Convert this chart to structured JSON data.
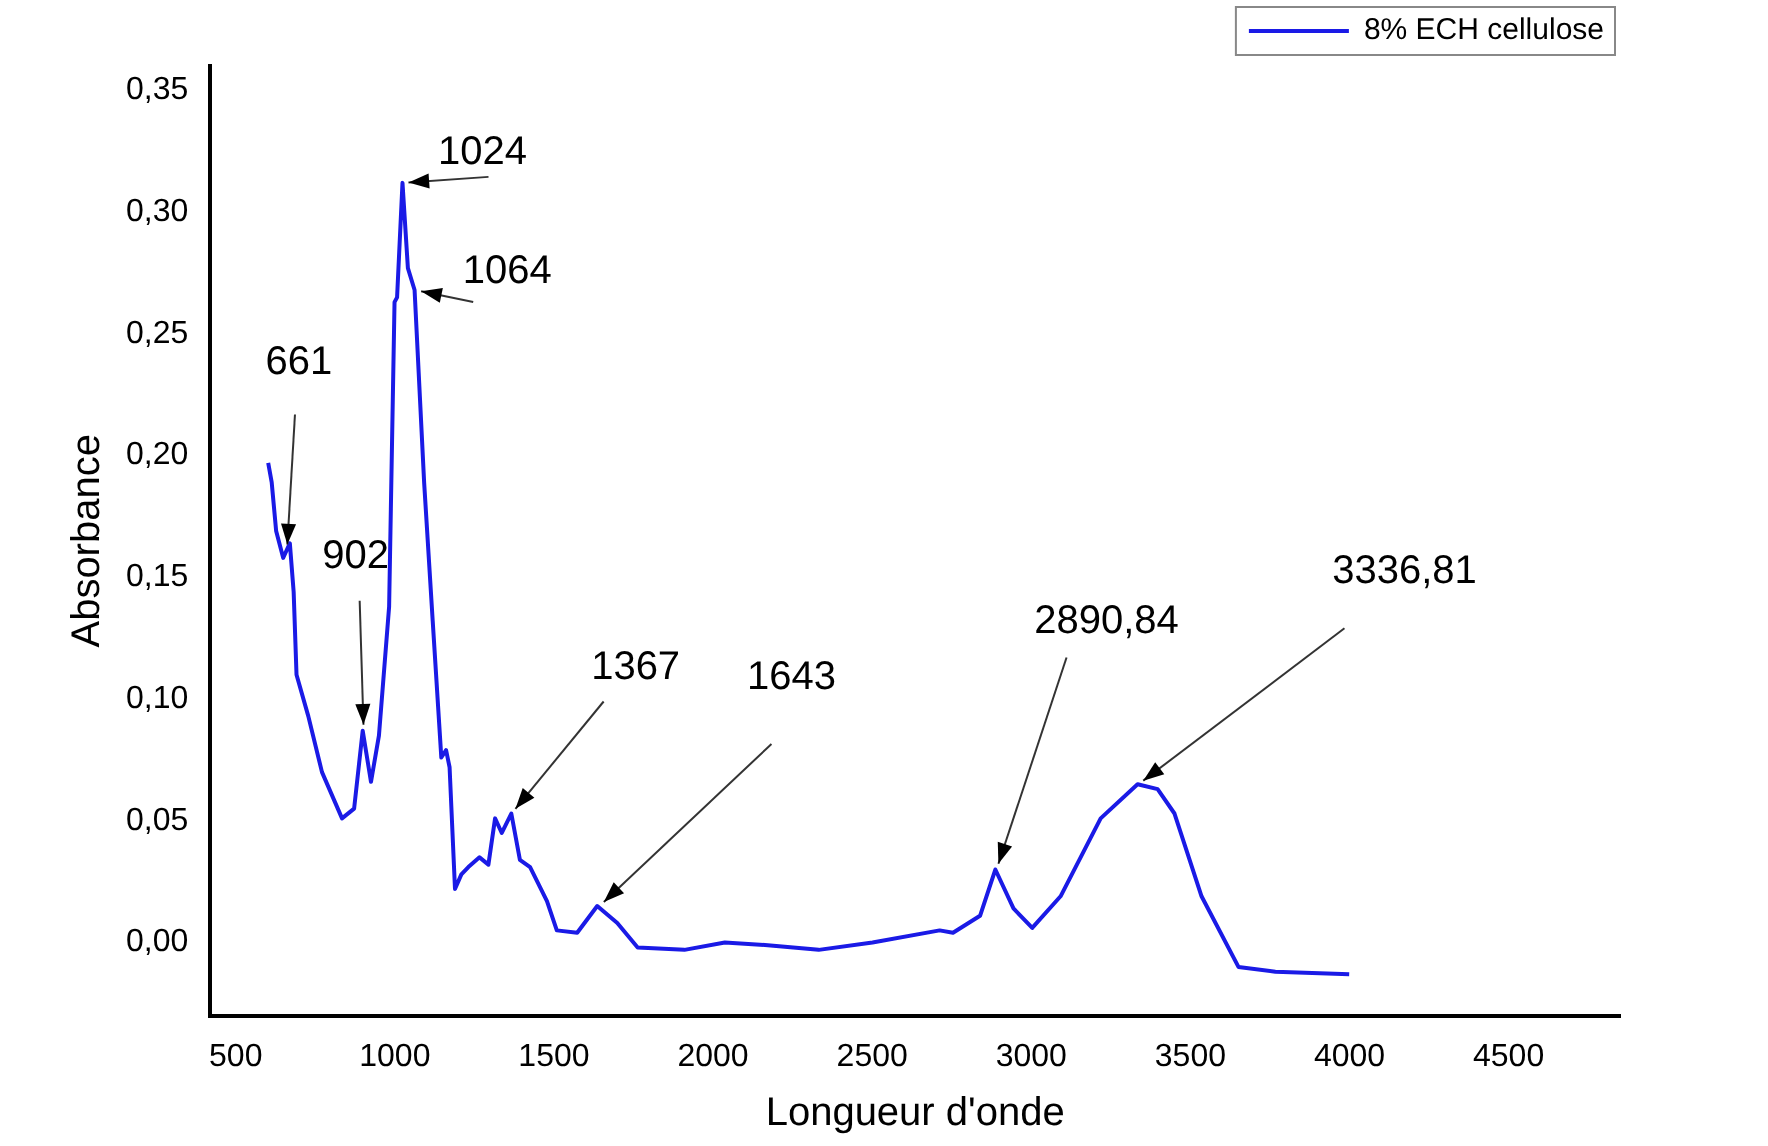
{
  "chart_data": {
    "type": "line",
    "xlabel": "Longueur d'onde",
    "ylabel": "Absorbance",
    "xlim": [
      420,
      4850
    ],
    "xticks": [
      500,
      1000,
      1500,
      2000,
      2500,
      3000,
      3500,
      4000,
      4500
    ],
    "ylim": [
      -0.03,
      0.36
    ],
    "yticks": [
      {
        "value": 0,
        "label": "0,00"
      },
      {
        "value": 0.05,
        "label": "0,05"
      },
      {
        "value": 0.1,
        "label": "0,10"
      },
      {
        "value": 0.15,
        "label": "0,15"
      },
      {
        "value": 0.2,
        "label": "0,20"
      },
      {
        "value": 0.25,
        "label": "0,25"
      },
      {
        "value": 0.3,
        "label": "0,30"
      },
      {
        "value": 0.35,
        "label": "0,35"
      }
    ],
    "grid": false,
    "legend": "top right",
    "marker": "none",
    "line_style": "solid",
    "x": [
      602,
      613,
      627,
      649,
      670,
      682,
      691,
      728,
      771,
      834,
      872,
      899,
      925,
      950,
      982,
      999,
      1007,
      1024,
      1041,
      1062,
      1092,
      1119,
      1146,
      1161,
      1172,
      1189,
      1209,
      1231,
      1266,
      1294,
      1315,
      1336,
      1366,
      1393,
      1425,
      1478,
      1509,
      1573,
      1636,
      1699,
      1763,
      1910,
      2037,
      2163,
      2332,
      2501,
      2712,
      2754,
      2839,
      2887,
      2944,
      3003,
      3092,
      3218,
      3334,
      3397,
      3450,
      3535,
      3651,
      3767,
      3999
    ],
    "series": [
      {
        "name": "8% ECH cellulose",
        "color": "#1a1ae6",
        "values": [
          0.197,
          0.189,
          0.169,
          0.158,
          0.164,
          0.144,
          0.11,
          0.093,
          0.07,
          0.051,
          0.055,
          0.087,
          0.066,
          0.085,
          0.138,
          0.263,
          0.265,
          0.312,
          0.277,
          0.268,
          0.189,
          0.132,
          0.076,
          0.079,
          0.072,
          0.022,
          0.028,
          0.031,
          0.035,
          0.032,
          0.051,
          0.045,
          0.053,
          0.034,
          0.031,
          0.017,
          0.005,
          0.004,
          0.015,
          0.008,
          -0.002,
          -0.003,
          0.0,
          -0.001,
          -0.003,
          0.0,
          0.005,
          0.004,
          0.011,
          0.03,
          0.014,
          0.006,
          0.019,
          0.051,
          0.065,
          0.063,
          0.053,
          0.019,
          -0.01,
          -0.012,
          -0.013
        ]
      }
    ],
    "annotations": [
      {
        "text": "661",
        "x": 661,
        "y": 0.161
      },
      {
        "text": "902",
        "x": 902,
        "y": 0.087
      },
      {
        "text": "1024",
        "x": 1024,
        "y": 0.312
      },
      {
        "text": "1064",
        "x": 1064,
        "y": 0.268
      },
      {
        "text": "1367",
        "x": 1367,
        "y": 0.053
      },
      {
        "text": "1643",
        "x": 1643,
        "y": 0.015
      },
      {
        "text": "2890,84",
        "x": 2890.84,
        "y": 0.03
      },
      {
        "text": "3336,81",
        "x": 3336.81,
        "y": 0.065
      }
    ]
  }
}
